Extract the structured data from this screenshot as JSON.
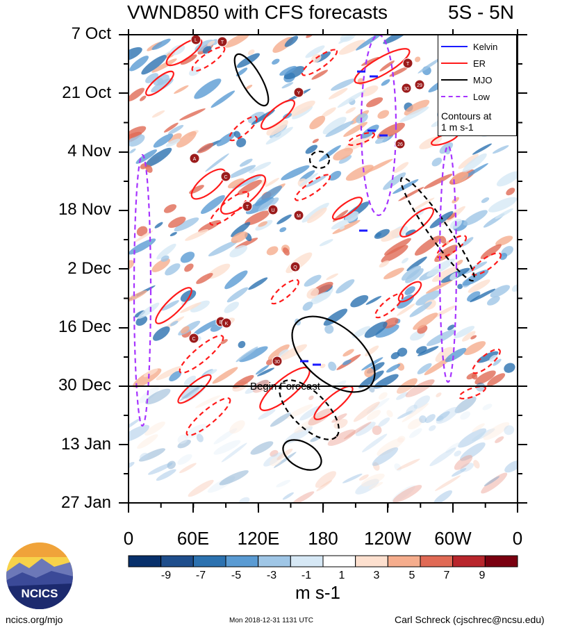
{
  "header": {
    "title": "VWND850 with CFS forecasts",
    "region": "5S - 5N"
  },
  "legend": {
    "entries": [
      {
        "label": "Kelvin",
        "color": "#1a1aff",
        "style": "solid"
      },
      {
        "label": "ER",
        "color": "#ff1a1a",
        "style": "solid"
      },
      {
        "label": "MJO",
        "color": "#000000",
        "style": "solid"
      },
      {
        "label": "Low",
        "color": "#a633ff",
        "style": "dashed"
      }
    ],
    "note_line1": "Contours at",
    "note_line2": "1 m s-1"
  },
  "annotation": {
    "forecast_label": "Begin Forecast"
  },
  "colorbar": {
    "labels": [
      "-9",
      "-7",
      "-5",
      "-3",
      "-1",
      "1",
      "3",
      "5",
      "7",
      "9"
    ],
    "colors": [
      "#08306b",
      "#1f4e8c",
      "#2c72b0",
      "#5a9bd3",
      "#9fc6e6",
      "#d6e8f5",
      "#ffffff",
      "#fde0cf",
      "#f5ad8d",
      "#e06a55",
      "#b8262c",
      "#7a0010"
    ],
    "units": "m s-1"
  },
  "footer": {
    "site": "ncics.org/mjo",
    "timestamp": "Mon 2018-12-31 1131 UTC",
    "author": "Carl Schreck (cjschrec@ncsu.edu)",
    "logo_text": "NCICS"
  },
  "chart_data": {
    "type": "heatmap",
    "title": "VWND850 with CFS forecasts",
    "subtitle": "5S - 5N",
    "x_tick_labels": [
      "0",
      "60E",
      "120E",
      "180",
      "120W",
      "60W",
      "0"
    ],
    "x_range": [
      "0",
      "0"
    ],
    "y_tick_labels": [
      "7 Oct",
      "21 Oct",
      "4 Nov",
      "18 Nov",
      "2 Dec",
      "16 Dec",
      "30 Dec",
      "13 Jan",
      "27 Jan"
    ],
    "y_range": [
      "7 Oct",
      "27 Jan"
    ],
    "y_reversed": true,
    "forecast_start": "30 Dec",
    "contour_interval": "1 m s-1",
    "series": [
      {
        "name": "Kelvin",
        "color": "#1a1aff"
      },
      {
        "name": "ER",
        "color": "#ff1a1a"
      },
      {
        "name": "MJO",
        "color": "#000000"
      },
      {
        "name": "Low",
        "color": "#a633ff"
      }
    ],
    "colorbar_levels": [
      -9,
      -7,
      -5,
      -3,
      -1,
      1,
      3,
      5,
      7,
      9
    ],
    "storm_markers": [
      "L",
      "T",
      "Y",
      "A",
      "C",
      "T",
      "U",
      "M",
      "Q",
      "B",
      "K",
      "C",
      "30",
      "T",
      "30",
      "29",
      "26"
    ],
    "legend_position": "top-right"
  }
}
